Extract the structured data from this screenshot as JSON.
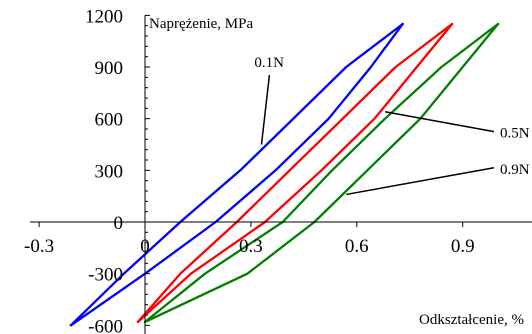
{
  "chart_data": {
    "type": "line",
    "title": "",
    "xlabel": "Odkształcenie, %",
    "ylabel": "Naprężenie, MPa",
    "xlim": [
      -0.3,
      1.05
    ],
    "ylim": [
      -600,
      1200
    ],
    "x_ticks": [
      -0.3,
      0,
      0.3,
      0.6,
      0.9
    ],
    "x_tick_labels": [
      "-0.3",
      "0",
      "0.3",
      "0.6",
      "0.9"
    ],
    "y_ticks": [
      -600,
      -300,
      0,
      300,
      600,
      900,
      1200
    ],
    "y_tick_labels": [
      "-600",
      "-300",
      "0",
      "300",
      "600",
      "900",
      "1200"
    ],
    "grid": false,
    "series": [
      {
        "name": "0.1N",
        "color": "#0000ff",
        "loading": [
          [
            -0.21,
            -600
          ],
          [
            0.0,
            -300
          ],
          [
            0.2,
            0
          ],
          [
            0.37,
            300
          ],
          [
            0.52,
            600
          ],
          [
            0.64,
            900
          ],
          [
            0.73,
            1150
          ]
        ],
        "unloading": [
          [
            0.73,
            1150
          ],
          [
            0.57,
            900
          ],
          [
            0.42,
            600
          ],
          [
            0.27,
            300
          ],
          [
            0.1,
            0
          ],
          [
            -0.06,
            -300
          ],
          [
            -0.21,
            -600
          ]
        ]
      },
      {
        "name": "0.5N",
        "color": "#ff0000",
        "loading": [
          [
            -0.02,
            -580
          ],
          [
            0.13,
            -300
          ],
          [
            0.34,
            0
          ],
          [
            0.5,
            300
          ],
          [
            0.65,
            600
          ],
          [
            0.77,
            900
          ],
          [
            0.87,
            1150
          ]
        ],
        "unloading": [
          [
            0.87,
            1150
          ],
          [
            0.71,
            900
          ],
          [
            0.56,
            600
          ],
          [
            0.41,
            300
          ],
          [
            0.26,
            0
          ],
          [
            0.1,
            -300
          ],
          [
            -0.02,
            -580
          ]
        ]
      },
      {
        "name": "0.9N",
        "color": "#008000",
        "loading": [
          [
            0.0,
            -580
          ],
          [
            0.29,
            -300
          ],
          [
            0.48,
            0
          ],
          [
            0.63,
            300
          ],
          [
            0.78,
            600
          ],
          [
            0.9,
            900
          ],
          [
            1.0,
            1150
          ]
        ],
        "unloading": [
          [
            1.0,
            1150
          ],
          [
            0.84,
            900
          ],
          [
            0.68,
            600
          ],
          [
            0.53,
            300
          ],
          [
            0.39,
            0
          ],
          [
            0.17,
            -300
          ],
          [
            0.0,
            -580
          ]
        ]
      }
    ],
    "annotations": [
      {
        "text": "0.1N",
        "series": 0,
        "text_at": [
          0.31,
          900
        ],
        "points_to": [
          0.33,
          450
        ]
      },
      {
        "text": "0.5N",
        "series": 1,
        "text_at": [
          1.0,
          490
        ],
        "points_to": [
          0.68,
          640
        ]
      },
      {
        "text": "0.9N",
        "series": 2,
        "text_at": [
          1.0,
          280
        ],
        "points_to": [
          0.57,
          160
        ]
      }
    ]
  }
}
